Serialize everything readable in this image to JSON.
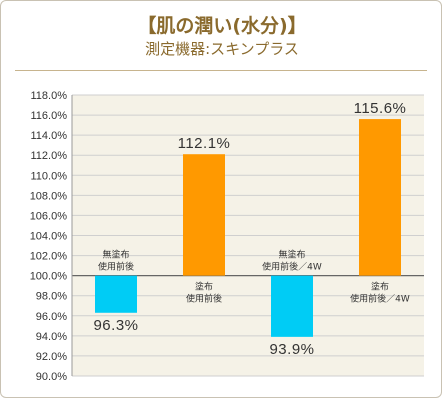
{
  "chart_data": {
    "type": "bar",
    "title": "【肌の潤い(水分)】",
    "subtitle": "測定機器:スキンプラス",
    "baseline": 100.0,
    "ylim": [
      90.0,
      118.0
    ],
    "yticks": [
      "118.0%",
      "116.0%",
      "114.0%",
      "112.0%",
      "110.0%",
      "108.0%",
      "106.0%",
      "104.0%",
      "102.0%",
      "100.0%",
      "98.0%",
      "96.0%",
      "94.0%",
      "92.0%",
      "90.0%"
    ],
    "categories": [
      [
        "無塗布",
        "使用前後"
      ],
      [
        "塗布",
        "使用前後"
      ],
      [
        "無塗布",
        "使用前後／4W"
      ],
      [
        "塗布",
        "使用前後／4W"
      ]
    ],
    "values": [
      96.3,
      112.1,
      93.9,
      115.6
    ],
    "value_labels": [
      "96.3%",
      "112.1%",
      "93.9%",
      "115.6%"
    ],
    "colors": [
      "#00ccf5",
      "#ff9900",
      "#00ccf5",
      "#ff9900"
    ],
    "grid": true
  }
}
